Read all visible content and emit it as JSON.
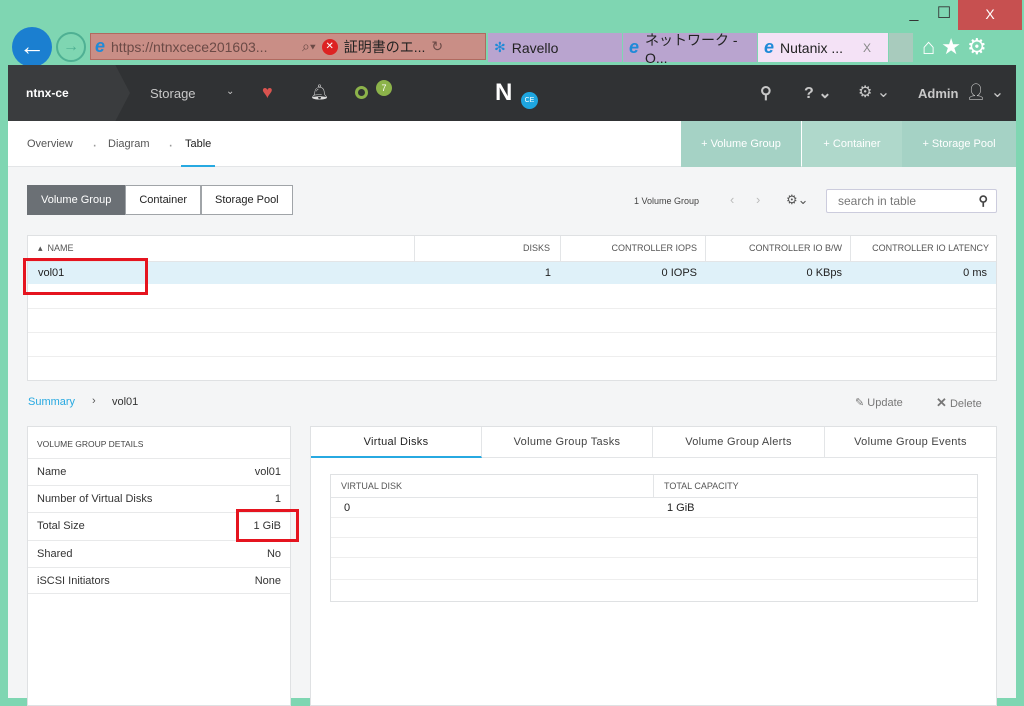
{
  "browser": {
    "url": "https://ntnxcece201603...",
    "cert_error": "証明書のエ...",
    "tabs": [
      {
        "title": "Ravello"
      },
      {
        "title": "ネットワーク - O..."
      },
      {
        "title": "Nutanix ...",
        "active": true
      }
    ],
    "close_tab": "X"
  },
  "header": {
    "cluster": "ntnx-ce",
    "section": "Storage",
    "alert_count": "7",
    "logo": "N",
    "logo_badge": "CE",
    "user": "Admin"
  },
  "subnav": {
    "tabs": [
      "Overview",
      "Diagram",
      "Table"
    ],
    "active": "Table",
    "actions": [
      "+ Volume Group",
      "+ Container",
      "+ Storage Pool"
    ]
  },
  "toolbar": {
    "segments": [
      "Volume Group",
      "Container",
      "Storage Pool"
    ],
    "active": "Volume Group",
    "count": "1 Volume Group",
    "search_placeholder": "search in table"
  },
  "table": {
    "columns": [
      "NAME",
      "DISKS",
      "CONTROLLER IOPS",
      "CONTROLLER IO B/W",
      "CONTROLLER IO LATENCY"
    ],
    "rows": [
      [
        "vol01",
        "1",
        "0 IOPS",
        "0 KBps",
        "0 ms"
      ]
    ]
  },
  "summary": {
    "breadcrumb": "Summary",
    "item": "vol01",
    "update": "Update",
    "delete": "Delete"
  },
  "details": {
    "title": "VOLUME GROUP DETAILS",
    "rows": [
      {
        "label": "Name",
        "value": "vol01"
      },
      {
        "label": "Number of Virtual Disks",
        "value": "1"
      },
      {
        "label": "Total Size",
        "value": "1 GiB"
      },
      {
        "label": "Shared",
        "value": "No"
      },
      {
        "label": "iSCSI Initiators",
        "value": "None"
      }
    ]
  },
  "detail_tabs": [
    "Virtual Disks",
    "Volume Group Tasks",
    "Volume Group Alerts",
    "Volume Group Events"
  ],
  "vdisks": {
    "columns": [
      "VIRTUAL DISK",
      "TOTAL CAPACITY"
    ],
    "rows": [
      [
        "0",
        "1 GiB"
      ]
    ]
  }
}
